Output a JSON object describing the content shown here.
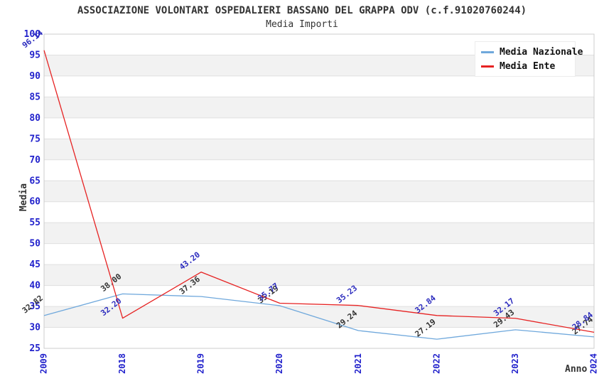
{
  "chart_data": {
    "type": "line",
    "title": "ASSOCIAZIONE VOLONTARI OSPEDALIERI BASSANO DEL GRAPPA ODV (c.f.91020760244)",
    "subtitle": "Media Importi",
    "xlabel": "Anno",
    "ylabel": "Media",
    "categories": [
      "2009",
      "2018",
      "2019",
      "2020",
      "2021",
      "2022",
      "2023",
      "2024"
    ],
    "series": [
      {
        "name": "Media Nazionale",
        "color": "#6fa8dc",
        "label_color": "#333333",
        "values": [
          32.82,
          38.0,
          37.36,
          35.19,
          29.24,
          27.19,
          29.43,
          27.74
        ]
      },
      {
        "name": "Media Ente",
        "color": "#e62222",
        "label_color": "#2c2cbe",
        "values": [
          96.14,
          32.2,
          43.2,
          35.77,
          35.23,
          32.84,
          32.17,
          28.84
        ]
      }
    ],
    "ylim": [
      25,
      100
    ],
    "ytick_step": 5,
    "grid": true,
    "legend_position": "top-right",
    "tick_label_color": "#2222cc",
    "band_color": "#f2f2f2",
    "gridline_color": "#e0e0e0",
    "plot_border_color": "#cccccc"
  }
}
